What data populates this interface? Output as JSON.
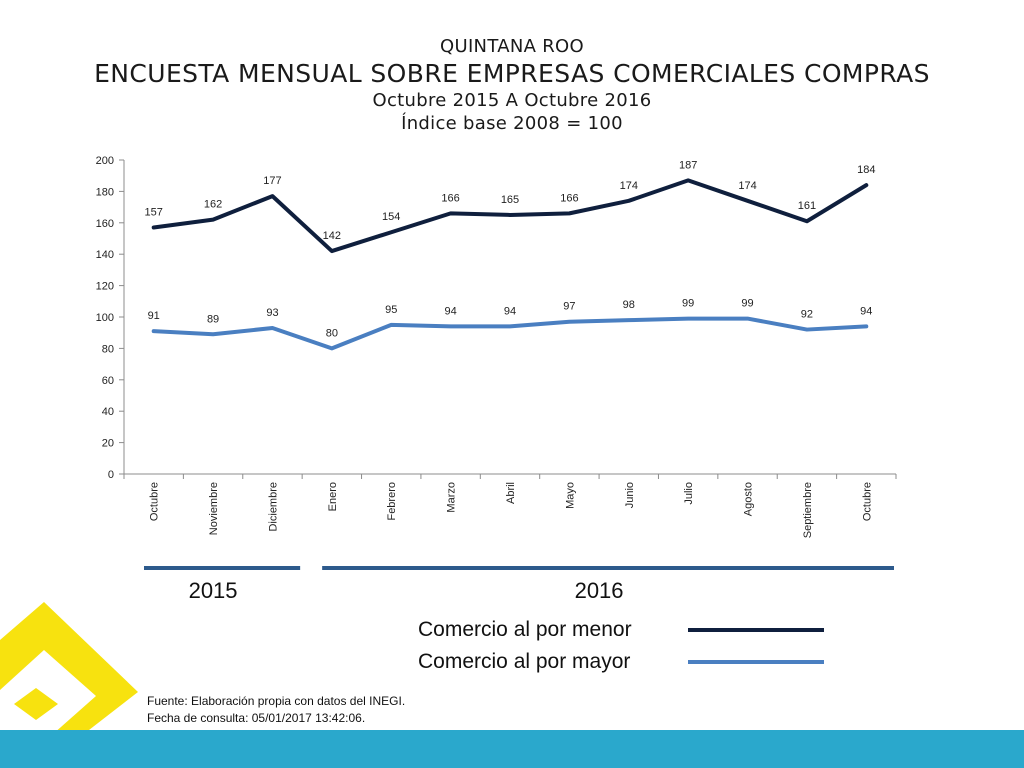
{
  "header": {
    "region": "QUINTANA ROO",
    "title": "ENCUESTA MENSUAL SOBRE EMPRESAS COMERCIALES COMPRAS",
    "period": "Octubre 2015 A Octubre 2016",
    "base": "Índice base 2008 = 100"
  },
  "chart_data": {
    "type": "line",
    "categories": [
      "Octubre",
      "Noviembre",
      "Diciembre",
      "Enero",
      "Febrero",
      "Marzo",
      "Abril",
      "Mayo",
      "Junio",
      "Julio",
      "Agosto",
      "Septiembre",
      "Octubre"
    ],
    "ylim": [
      0,
      200
    ],
    "yticks": [
      0,
      20,
      40,
      60,
      80,
      100,
      120,
      140,
      160,
      180,
      200
    ],
    "grid": false,
    "legend_position": "bottom",
    "series": [
      {
        "name": "Comercio al por menor",
        "color": "#0f1f3d",
        "values": [
          157,
          162,
          177,
          142,
          154,
          166,
          165,
          166,
          174,
          187,
          174,
          161,
          184
        ]
      },
      {
        "name": "Comercio al por mayor",
        "color": "#4a7fc1",
        "values": [
          91,
          89,
          93,
          80,
          95,
          94,
          94,
          97,
          98,
          99,
          99,
          92,
          94
        ]
      }
    ],
    "year_groups": [
      {
        "label": "2015",
        "from": 0,
        "to": 2
      },
      {
        "label": "2016",
        "from": 3,
        "to": 12
      }
    ]
  },
  "colors": {
    "year_bar": "#2d5a8c",
    "footer": "#2aa8cc",
    "logo": "#f7e20f"
  },
  "source": {
    "line1": "Fuente: Elaboración propia con datos del INEGI.",
    "line2": "Fecha de consulta: 05/01/2017  13:42:06."
  }
}
